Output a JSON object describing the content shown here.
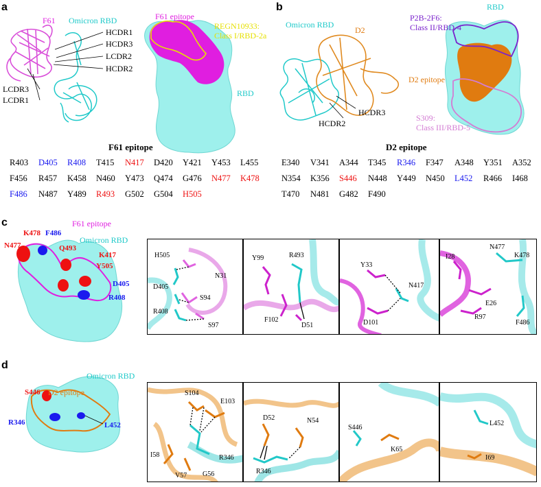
{
  "panels": {
    "a": "a",
    "b": "b",
    "c": "c",
    "d": "d"
  },
  "colors": {
    "cyan": "#2ee6e6",
    "surface": "#9ef0ec",
    "magenta": "#e01ee0",
    "pinkLight": "#d860d8",
    "orange": "#e07b10",
    "red": "#ee1111",
    "blue": "#1a1aee",
    "yellow": "#e6e000",
    "purple": "#7a22cc",
    "lilac": "#d37cd3",
    "black": "#000000"
  },
  "a": {
    "f61": "F61",
    "omicron": "Omicron RBD",
    "cdr": [
      "HCDR1",
      "HCDR3",
      "LCDR2",
      "HCDR2"
    ],
    "lcdr3": "LCDR3",
    "lcdr1": "LCDR1",
    "epitope": "F61 epitope",
    "regn_line1": "REGN10933:",
    "regn_line2": "Class I/RBD-2a",
    "rbd": "RBD",
    "table_title": "F61 epitope",
    "residues": [
      [
        [
          "R403",
          "k"
        ],
        [
          "D405",
          "b"
        ],
        [
          "R408",
          "b"
        ],
        [
          "T415",
          "k"
        ],
        [
          "N417",
          "r"
        ],
        [
          "D420",
          "k"
        ],
        [
          "Y421",
          "k"
        ],
        [
          "Y453",
          "k"
        ],
        [
          "L455",
          "k"
        ]
      ],
      [
        [
          "F456",
          "k"
        ],
        [
          "R457",
          "k"
        ],
        [
          "K458",
          "k"
        ],
        [
          "N460",
          "k"
        ],
        [
          "Y473",
          "k"
        ],
        [
          "Q474",
          "k"
        ],
        [
          "G476",
          "k"
        ],
        [
          "N477",
          "r"
        ],
        [
          "K478",
          "r"
        ]
      ],
      [
        [
          "F486",
          "b"
        ],
        [
          "N487",
          "k"
        ],
        [
          "Y489",
          "k"
        ],
        [
          "R493",
          "r"
        ],
        [
          "G502",
          "k"
        ],
        [
          "G504",
          "k"
        ],
        [
          "H505",
          "r"
        ]
      ]
    ]
  },
  "b": {
    "omicron": "Omicron RBD",
    "d2": "D2",
    "hcdr3": "HCDR3",
    "hcdr2": "HCDR2",
    "rbd": "RBD",
    "p2b_line1": "P2B-2F6:",
    "p2b_line2": "Class II/RBD-4",
    "epitope": "D2 epitope",
    "s309_line1": "S309:",
    "s309_line2": "Class III/RBD-5",
    "table_title": "D2 epitope",
    "residues": [
      [
        [
          "E340",
          "k"
        ],
        [
          "V341",
          "k"
        ],
        [
          "A344",
          "k"
        ],
        [
          "T345",
          "k"
        ],
        [
          "R346",
          "b"
        ],
        [
          "F347",
          "k"
        ],
        [
          "A348",
          "k"
        ],
        [
          "Y351",
          "k"
        ],
        [
          "A352",
          "k"
        ]
      ],
      [
        [
          "N354",
          "k"
        ],
        [
          "K356",
          "k"
        ],
        [
          "S446",
          "r"
        ],
        [
          "N448",
          "k"
        ],
        [
          "Y449",
          "k"
        ],
        [
          "N450",
          "k"
        ],
        [
          "L452",
          "b"
        ],
        [
          "R466",
          "k"
        ],
        [
          "I468",
          "k"
        ]
      ],
      [
        [
          "T470",
          "k"
        ],
        [
          "N481",
          "k"
        ],
        [
          "G482",
          "k"
        ],
        [
          "F490",
          "k"
        ]
      ]
    ]
  },
  "c": {
    "epitope": "F61 epitope",
    "omicron": "Omicron RBD",
    "k478": "K478",
    "f486": "F486",
    "n477": "N477",
    "q493": "Q493",
    "k417": "K417",
    "y505": "Y505",
    "d405": "D405",
    "r408": "R408",
    "p1": {
      "h505": "H505",
      "n31": "N31",
      "d405": "D405",
      "s94": "S94",
      "r408": "R408",
      "s97": "S97"
    },
    "p2": {
      "y99": "Y99",
      "r493": "R493",
      "f102": "F102",
      "d51": "D51"
    },
    "p3": {
      "y33": "Y33",
      "n417": "N417",
      "d101": "D101"
    },
    "p4": {
      "n477": "N477",
      "i28": "I28",
      "k478": "K478",
      "e26": "E26",
      "r97": "R97",
      "f486": "F486"
    }
  },
  "d": {
    "omicron": "Omicron RBD",
    "s446": "S446",
    "epitope": "D2 epitope",
    "r346": "R346",
    "l452": "L452",
    "p1": {
      "s104": "S104",
      "e103": "E103",
      "i58": "I58",
      "r346": "R346",
      "v57": "V57",
      "g56": "G56"
    },
    "p2": {
      "d52": "D52",
      "n54": "N54",
      "r346": "R346"
    },
    "p3": {
      "s446": "S446",
      "k65": "K65"
    },
    "p4": {
      "l452": "L452",
      "i69": "I69"
    }
  }
}
